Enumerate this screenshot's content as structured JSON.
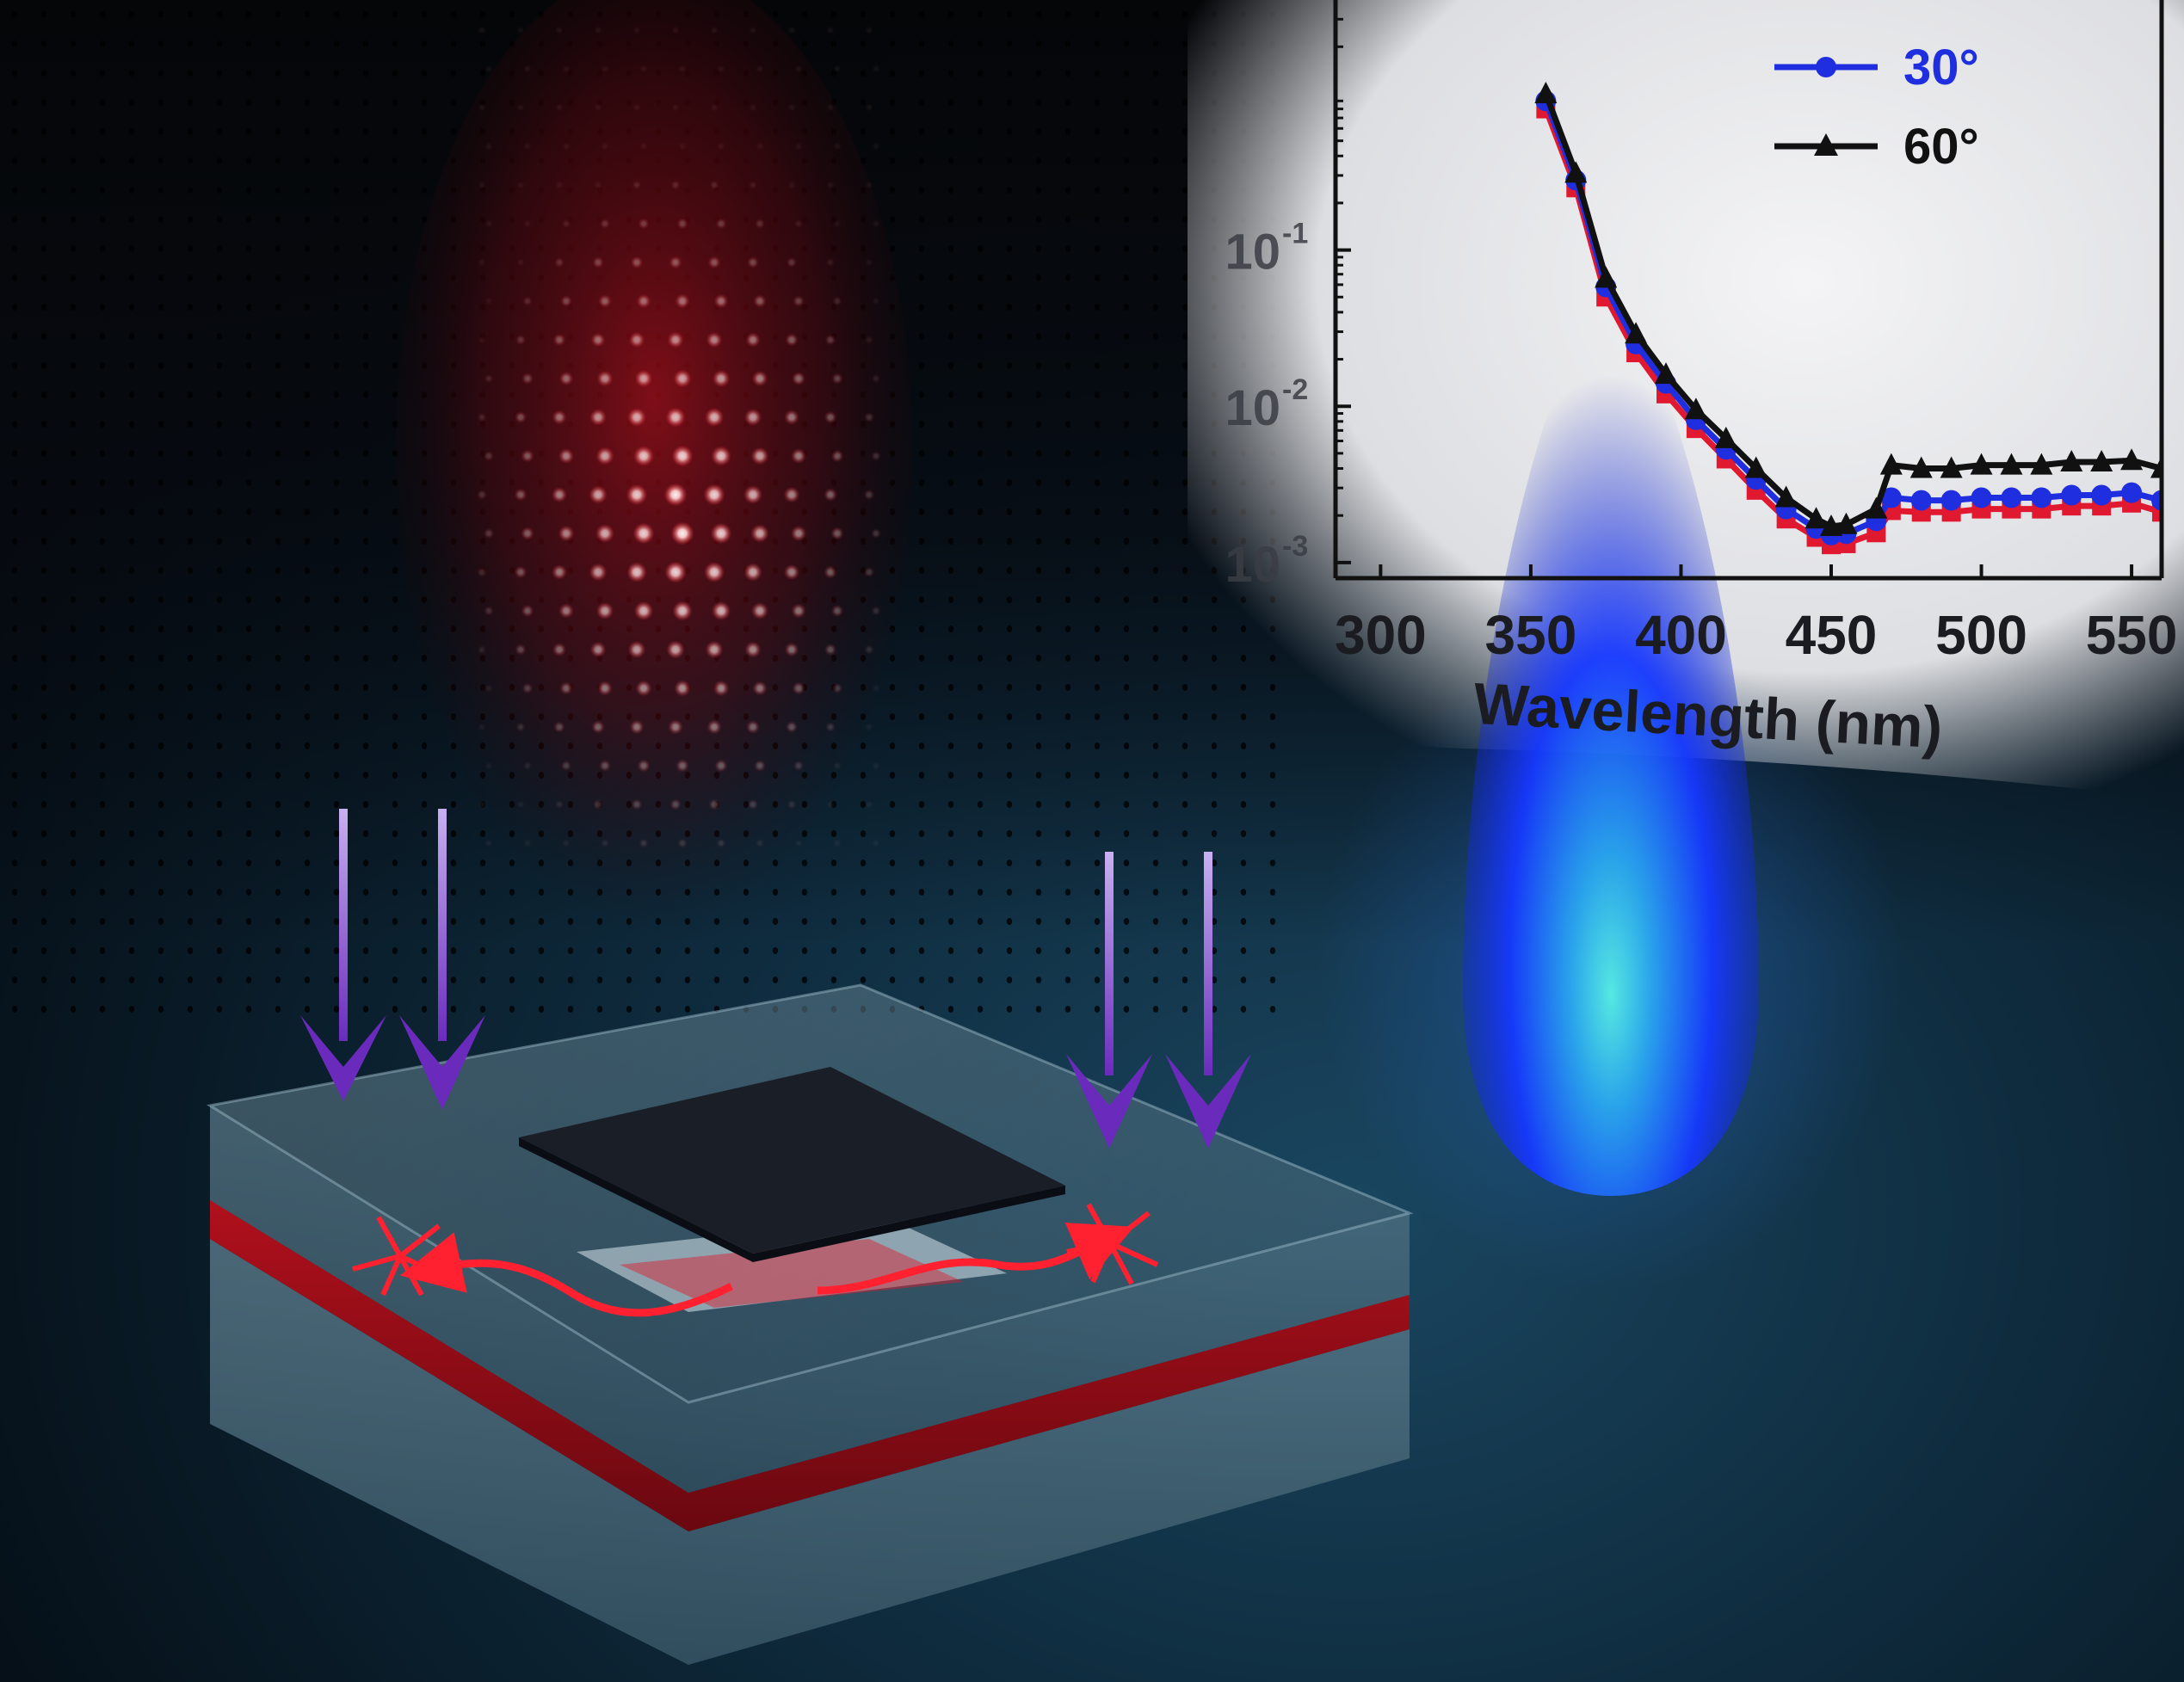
{
  "colors": {
    "background_dark": "#050a10",
    "background_floor": "#0e2a3c",
    "emission_red": "#e0182a",
    "pump_arrow_violet": "#6a2bbd",
    "flame_blue": "#1a44ff",
    "flame_core": "#3ee0e0",
    "plot_panel": "#ecedf0",
    "series_red": "#e01830",
    "series_blue": "#1f2fe0",
    "series_black": "#111111"
  },
  "illustration": {
    "left_panel": "red dotted emission pattern over a dark perforated background",
    "device": "glass slab device with red emitting layer and dark top square",
    "pump_arrows": 4,
    "waveguide_arrows": 2,
    "flame": "blue flame"
  },
  "chart_data": {
    "type": "line",
    "title": "",
    "xlabel": "Wavelength (nm)",
    "ylabel": "",
    "xlim": [
      285,
      560
    ],
    "ylim_log10": [
      -3.1,
      0.6
    ],
    "y_scale": "log",
    "x_ticks": [
      "300",
      "350",
      "400",
      "450",
      "500",
      "550"
    ],
    "y_ticks": [
      {
        "base": "10",
        "exp": "-1",
        "value": 0.1
      },
      {
        "base": "10",
        "exp": "-2",
        "value": 0.01
      },
      {
        "base": "10",
        "exp": "-3",
        "value": 0.001
      }
    ],
    "legend_position": "top-right",
    "series": [
      {
        "name": "",
        "color": "#e01830",
        "marker": "square",
        "x": [
          355,
          365,
          375,
          385,
          395,
          405,
          415,
          425,
          435,
          445,
          450,
          455,
          465,
          470,
          480,
          490,
          500,
          510,
          520,
          530,
          540,
          550,
          560
        ],
        "y": [
          0.8,
          0.25,
          0.05,
          0.022,
          0.012,
          0.0072,
          0.0046,
          0.0029,
          0.0019,
          0.00145,
          0.0013,
          0.00132,
          0.00155,
          0.00215,
          0.0021,
          0.0021,
          0.0022,
          0.0022,
          0.0022,
          0.0023,
          0.0023,
          0.0024,
          0.0021
        ]
      },
      {
        "name": "30°",
        "color": "#1f2fe0",
        "marker": "circle",
        "x": [
          355,
          365,
          375,
          385,
          395,
          405,
          415,
          425,
          435,
          445,
          450,
          455,
          465,
          470,
          480,
          490,
          500,
          510,
          520,
          530,
          540,
          550,
          560
        ],
        "y": [
          0.9,
          0.28,
          0.058,
          0.025,
          0.014,
          0.0082,
          0.0053,
          0.0034,
          0.0022,
          0.00165,
          0.0015,
          0.00153,
          0.00185,
          0.0026,
          0.0025,
          0.0025,
          0.0026,
          0.0026,
          0.0026,
          0.0027,
          0.0027,
          0.0028,
          0.0025
        ]
      },
      {
        "name": "60°",
        "color": "#111111",
        "marker": "triangle",
        "x": [
          355,
          365,
          375,
          385,
          395,
          405,
          415,
          425,
          435,
          445,
          450,
          455,
          465,
          470,
          480,
          490,
          500,
          510,
          520,
          530,
          540,
          550,
          560
        ],
        "y": [
          1.0,
          0.31,
          0.066,
          0.029,
          0.016,
          0.0095,
          0.0062,
          0.004,
          0.0026,
          0.0019,
          0.0017,
          0.00175,
          0.0022,
          0.0042,
          0.004,
          0.004,
          0.0042,
          0.0042,
          0.0042,
          0.0044,
          0.0044,
          0.0045,
          0.004
        ]
      }
    ]
  }
}
